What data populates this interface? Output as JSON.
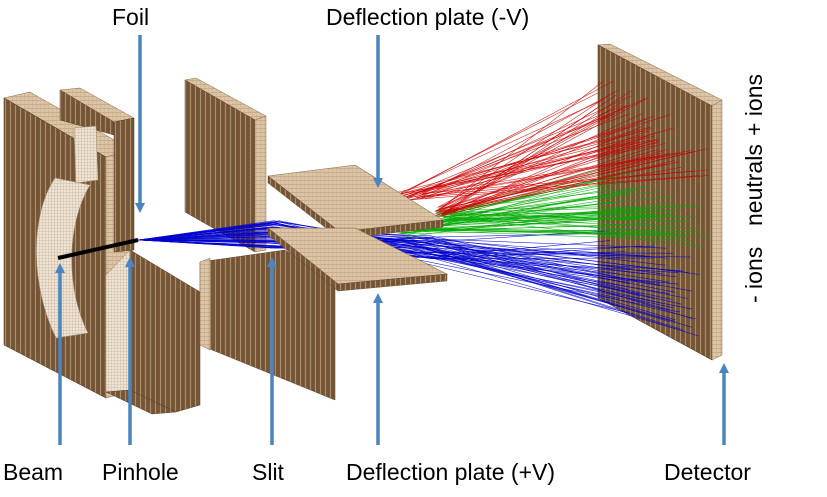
{
  "labels": {
    "foil": "Foil",
    "plate_top": "Deflection plate (-V)",
    "plate_bottom": "Deflection plate (+V)",
    "beam": "Beam",
    "pinhole": "Pinhole",
    "slit": "Slit",
    "detector": "Detector",
    "pos_ions": "+ ions",
    "neutrals": "neutrals",
    "neg_ions": "- ions"
  },
  "colors": {
    "wall": "#7a5a3a",
    "wall_edge": "#d9c3a5",
    "pinhole_edge": "#efe3d0",
    "arrow": "#4a85bf",
    "beam": "#000000",
    "pos_ions": "#cc0000",
    "neutrals": "#00aa00",
    "neg_ions": "#0000cc"
  }
}
